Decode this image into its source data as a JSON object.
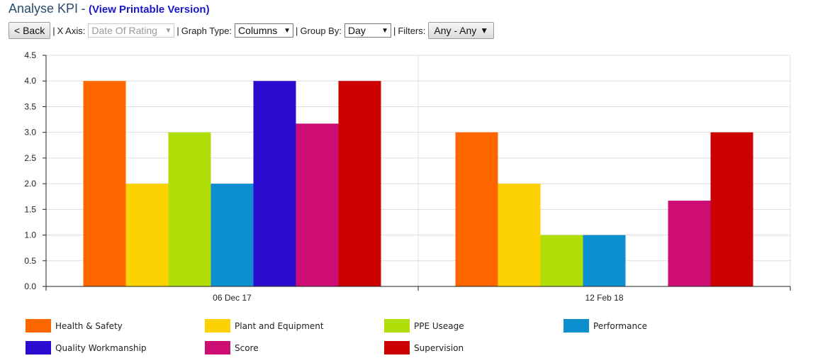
{
  "header": {
    "title": "Analyse KPI",
    "separator": "-",
    "printable_link": "(View Printable Version)"
  },
  "toolbar": {
    "back_label": "< Back",
    "sep": "|",
    "x_axis_label": "X Axis:",
    "x_axis_value": "Date Of Rating",
    "graph_type_label": "Graph Type:",
    "graph_type_value": "Columns",
    "group_by_label": "Group By:",
    "group_by_value": "Day",
    "filters_label": "Filters:",
    "filters_value": "Any - Any"
  },
  "icons": {
    "dropdown": "chevron-down-icon"
  },
  "chart_data": {
    "type": "bar",
    "categories": [
      "06 Dec 17",
      "12 Feb 18"
    ],
    "series": [
      {
        "name": "Health & Safety",
        "color": "#ff6600",
        "values": [
          4.0,
          3.0
        ]
      },
      {
        "name": "Plant and Equipment",
        "color": "#fcd202",
        "values": [
          2.0,
          2.0
        ]
      },
      {
        "name": "PPE Useage",
        "color": "#b0de09",
        "values": [
          3.0,
          1.0
        ]
      },
      {
        "name": "Performance",
        "color": "#0d8ecf",
        "values": [
          2.0,
          1.0
        ]
      },
      {
        "name": "Quality Workmanship",
        "color": "#2a0cd0",
        "values": [
          4.0,
          null
        ]
      },
      {
        "name": "Score",
        "color": "#cd0d74",
        "values": [
          3.17,
          1.67
        ]
      },
      {
        "name": "Supervision",
        "color": "#cc0000",
        "values": [
          4.0,
          3.0
        ]
      }
    ],
    "ylim": [
      0,
      4.5
    ],
    "yticks": [
      "0.0",
      "0.5",
      "1.0",
      "1.5",
      "2.0",
      "2.5",
      "3.0",
      "3.5",
      "4.0",
      "4.5"
    ],
    "grid": true,
    "legend_position": "bottom"
  }
}
